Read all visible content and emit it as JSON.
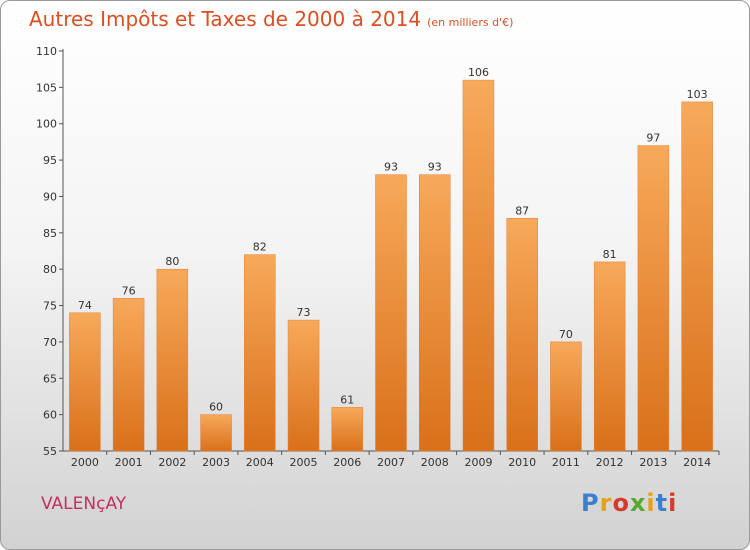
{
  "header": {
    "title": "Autres Impôts et Taxes de 2000 à 2014",
    "subtitle": "(en milliers d'€)"
  },
  "footer": {
    "city": "VALENçAY",
    "logo_text": "Proxiti",
    "logo_colors": [
      "#3a7fd0",
      "#e8a21a",
      "#d63a2b",
      "#5aa832",
      "#e8a21a",
      "#3a7fd0",
      "#d63a2b"
    ]
  },
  "colors": {
    "title": "#e04e1f",
    "city": "#c62e5e",
    "bar_light": "#f7a95a",
    "bar_dark": "#d9701a"
  },
  "chart_data": {
    "type": "bar",
    "title": "Autres Impôts et Taxes de 2000 à 2014",
    "subtitle": "(en milliers d'€)",
    "xlabel": "",
    "ylabel": "",
    "categories": [
      "2000",
      "2001",
      "2002",
      "2003",
      "2004",
      "2005",
      "2006",
      "2007",
      "2008",
      "2009",
      "2010",
      "2011",
      "2012",
      "2013",
      "2014"
    ],
    "values": [
      74,
      76,
      80,
      60,
      82,
      73,
      61,
      93,
      93,
      106,
      87,
      70,
      81,
      97,
      103
    ],
    "ylim": [
      55,
      110
    ],
    "yticks": [
      55,
      60,
      65,
      70,
      75,
      80,
      85,
      90,
      95,
      100,
      105,
      110
    ],
    "grid": false,
    "legend": "none"
  }
}
